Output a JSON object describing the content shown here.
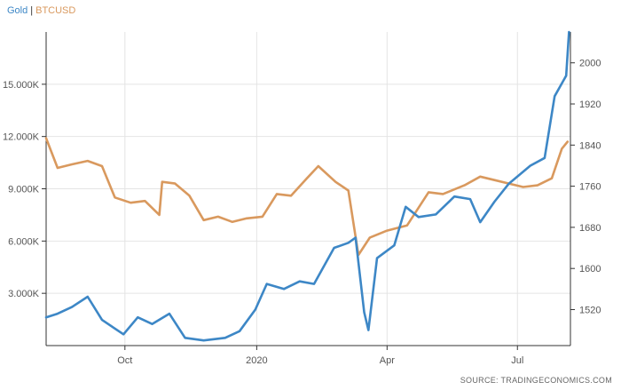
{
  "colors": {
    "gold": "#3d87c6",
    "btc": "#d9995e",
    "grid": "#e4e4e4",
    "axis": "#333333"
  },
  "source": "SOURCE: TRADINGECONOMICS.COM",
  "chart_data": {
    "type": "line",
    "legend": [
      "Gold",
      "BTCUSD"
    ],
    "left_axis": {
      "ylim": [
        0,
        18000
      ],
      "ticks": [
        3000,
        6000,
        9000,
        12000,
        15000
      ],
      "tick_labels": [
        "3.000K",
        "6.000K",
        "9.000K",
        "12.000K",
        "15.000K"
      ]
    },
    "right_axis": {
      "ylim": [
        1450,
        2060
      ],
      "ticks": [
        1520,
        1600,
        1680,
        1760,
        1840,
        1920,
        2000
      ],
      "tick_labels": [
        "1520",
        "1600",
        "1680",
        "1760",
        "1840",
        "1920",
        "2000"
      ]
    },
    "x_axis": {
      "range": [
        "2019-08-07",
        "2020-08-07"
      ],
      "ticks": [
        "2019-10-01",
        "2020-01-01",
        "2020-04-01",
        "2020-07-01"
      ],
      "tick_labels": [
        "Oct",
        "2020",
        "Apr",
        "Jul"
      ]
    },
    "grid": true,
    "series": [
      {
        "name": "BTCUSD",
        "axis": "left",
        "x": [
          "2019-08-07",
          "2019-08-15",
          "2019-08-25",
          "2019-09-05",
          "2019-09-15",
          "2019-09-24",
          "2019-10-05",
          "2019-10-15",
          "2019-10-25",
          "2019-10-27",
          "2019-11-05",
          "2019-11-15",
          "2019-11-25",
          "2019-12-05",
          "2019-12-15",
          "2019-12-25",
          "2020-01-05",
          "2020-01-15",
          "2020-01-25",
          "2020-02-05",
          "2020-02-13",
          "2020-02-25",
          "2020-03-05",
          "2020-03-12",
          "2020-03-20",
          "2020-04-01",
          "2020-04-15",
          "2020-04-30",
          "2020-05-10",
          "2020-05-25",
          "2020-06-05",
          "2020-06-15",
          "2020-06-25",
          "2020-07-05",
          "2020-07-15",
          "2020-07-25",
          "2020-08-01",
          "2020-08-05"
        ],
        "y": [
          11900,
          10200,
          10400,
          10600,
          10300,
          8500,
          8200,
          8300,
          7500,
          9400,
          9300,
          8600,
          7200,
          7400,
          7100,
          7300,
          7400,
          8700,
          8600,
          9600,
          10300,
          9400,
          8900,
          5200,
          6200,
          6600,
          6900,
          8800,
          8700,
          9200,
          9700,
          9500,
          9300,
          9100,
          9200,
          9600,
          11300,
          11700
        ]
      },
      {
        "name": "Gold",
        "axis": "right",
        "x": [
          "2019-08-07",
          "2019-08-15",
          "2019-08-25",
          "2019-09-05",
          "2019-09-15",
          "2019-09-30",
          "2019-10-10",
          "2019-10-20",
          "2019-11-01",
          "2019-11-12",
          "2019-11-25",
          "2019-12-10",
          "2019-12-20",
          "2019-12-31",
          "2020-01-08",
          "2020-01-20",
          "2020-01-31",
          "2020-02-10",
          "2020-02-24",
          "2020-03-05",
          "2020-03-10",
          "2020-03-16",
          "2020-03-19",
          "2020-03-25",
          "2020-04-06",
          "2020-04-14",
          "2020-04-23",
          "2020-05-05",
          "2020-05-18",
          "2020-05-29",
          "2020-06-05",
          "2020-06-15",
          "2020-06-25",
          "2020-07-10",
          "2020-07-20",
          "2020-07-27",
          "2020-08-04",
          "2020-08-06"
        ],
        "y": [
          1505,
          1512,
          1525,
          1545,
          1500,
          1472,
          1505,
          1492,
          1512,
          1465,
          1460,
          1465,
          1478,
          1520,
          1570,
          1560,
          1575,
          1570,
          1640,
          1650,
          1660,
          1515,
          1480,
          1620,
          1645,
          1720,
          1700,
          1705,
          1740,
          1735,
          1690,
          1730,
          1765,
          1800,
          1815,
          1935,
          1975,
          2060
        ]
      }
    ]
  }
}
